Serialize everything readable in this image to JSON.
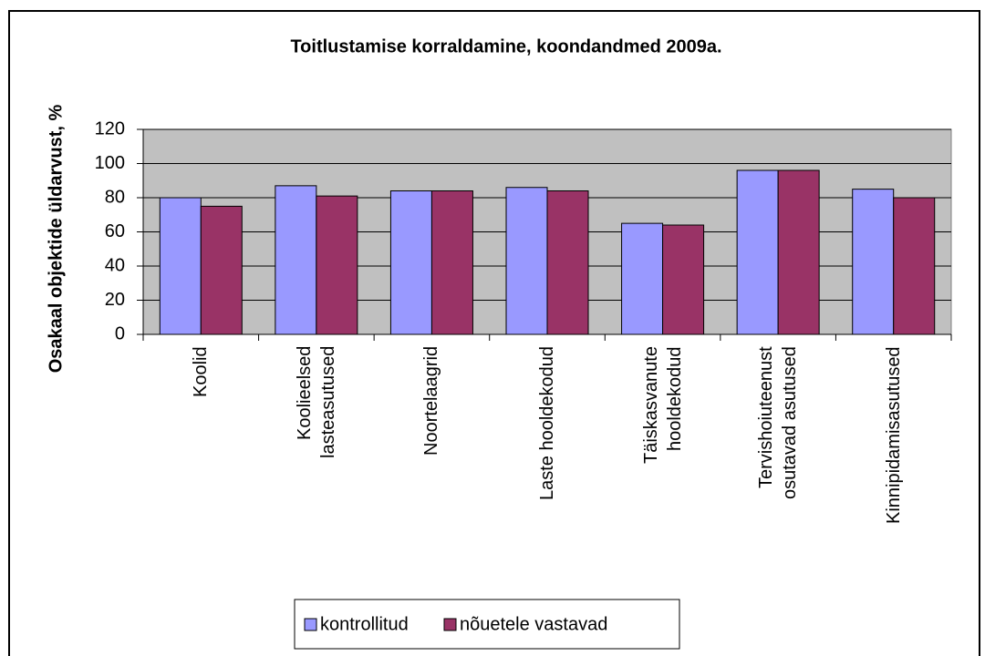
{
  "chart_data": {
    "type": "bar",
    "title": "Toitlustamise korraldamine, koondandmed 2009a.",
    "y_label": "Osakaal objektide üldarvust, %",
    "categories": [
      "Koolid",
      "Koolieelsed\nlasteasutused",
      "Noortelaagrid",
      "Laste hooldekodud",
      "Täiskasvanute\nhooldekodud",
      "Tervishoiuteenust\nosutavad asutused",
      "Kinnipidamisasutused"
    ],
    "series": [
      {
        "name": "kontrollitud",
        "color": "#9999ff",
        "values": [
          80,
          87,
          84,
          86,
          65,
          96,
          85
        ]
      },
      {
        "name": "nõuetele vastavad",
        "color": "#993366",
        "values": [
          75,
          81,
          84,
          84,
          64,
          96,
          80
        ]
      }
    ],
    "ylim": [
      0,
      120
    ],
    "yticks": [
      0,
      20,
      40,
      60,
      80,
      100,
      120
    ],
    "grid": true,
    "plot_background": "#c0c0c0",
    "legend": "bottom"
  }
}
